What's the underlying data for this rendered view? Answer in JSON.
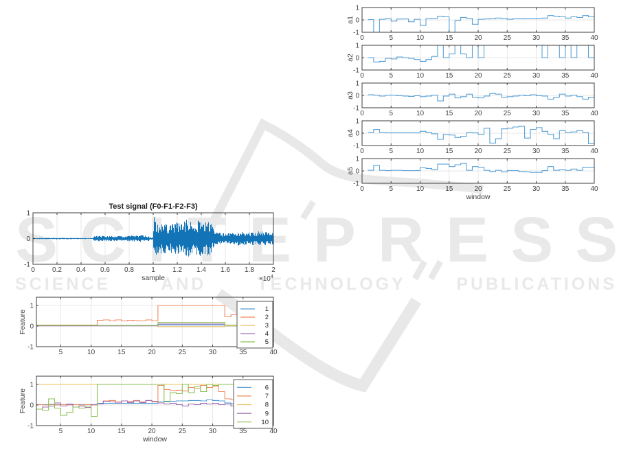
{
  "watermark": {
    "brand": "SCITEPRESS",
    "tagline": "SCIENCE AND TECHNOLOGY PUBLICATIONS",
    "color": "#e9e9e9",
    "logo_color": "#e8e8e8"
  },
  "colors": {
    "axis": "#3d3d3d",
    "tick_label": "#404040",
    "grid": "#e7e7e7",
    "stair_blue": "#58a1d8",
    "signal_blue": "#1273b7",
    "legend_border": "#555555",
    "series_palette": [
      "#4e9cd5",
      "#ef8a5e",
      "#ecc05e",
      "#a06db3",
      "#8abf55"
    ]
  },
  "chart_data": [
    {
      "id": "a1",
      "type": "stairs",
      "ylabel": "a1",
      "xlabel": "",
      "xlim": [
        0,
        40
      ],
      "ylim": [
        -1,
        1
      ],
      "xticks": [
        0,
        5,
        10,
        15,
        20,
        25,
        30,
        35,
        40
      ],
      "yticks": [
        1,
        0,
        -1
      ],
      "x_start": 1,
      "grid": true,
      "values": [
        0.02,
        -1.0,
        0.05,
        0.1,
        -0.1,
        0.07,
        0.08,
        -0.15,
        0.05,
        -0.45,
        0.1,
        0.12,
        0.3,
        0.25,
        -1.0,
        -0.05,
        0.2,
        0.12,
        -0.35,
        0.05,
        0.08,
        0.1,
        0.15,
        0.12,
        0.05,
        0.1,
        0.1,
        0.12,
        0.1,
        0.12,
        0.15,
        0.35,
        0.3,
        0.25,
        0.15,
        0.25,
        0.2,
        0.35,
        0.25,
        0.1
      ]
    },
    {
      "id": "a2",
      "type": "stairs",
      "ylabel": "a2",
      "xlabel": "",
      "xlim": [
        0,
        40
      ],
      "ylim": [
        -1,
        1
      ],
      "xticks": [
        0,
        5,
        10,
        15,
        20,
        25,
        30,
        35,
        40
      ],
      "yticks": [
        1,
        0,
        -1
      ],
      "x_start": 1,
      "grid": true,
      "values": [
        0.0,
        -0.35,
        -0.3,
        -0.05,
        -0.1,
        0.05,
        0.0,
        -0.05,
        -0.15,
        -0.3,
        -0.15,
        0.1,
        1.0,
        0.0,
        0.3,
        1.0,
        0.3,
        0.0,
        1.0,
        0.0,
        1.0,
        1.0,
        1.0,
        1.0,
        1.0,
        1.0,
        1.0,
        1.0,
        1.0,
        1.0,
        0.0,
        1.0,
        1.0,
        0.0,
        1.0,
        0.0,
        1.0,
        1.0,
        0.0,
        0.05
      ]
    },
    {
      "id": "a3",
      "type": "stairs",
      "ylabel": "a3",
      "xlabel": "",
      "xlim": [
        0,
        40
      ],
      "ylim": [
        -1,
        1
      ],
      "xticks": [
        0,
        5,
        10,
        15,
        20,
        25,
        30,
        35,
        40
      ],
      "yticks": [
        1,
        0,
        -1
      ],
      "x_start": 1,
      "grid": true,
      "values": [
        0.05,
        0.02,
        -0.05,
        0.02,
        0.02,
        -0.02,
        -0.05,
        -0.08,
        -0.02,
        -0.1,
        -0.05,
        0.02,
        -0.45,
        -0.05,
        0.1,
        -0.2,
        -0.1,
        0.1,
        -0.15,
        -0.2,
        -0.05,
        0.15,
        0.1,
        -0.15,
        -0.1,
        -0.05,
        0.02,
        -0.02,
        0.05,
        -0.02,
        -0.05,
        -0.3,
        -0.15,
        0.1,
        -0.05,
        0.02,
        -0.1,
        -0.3,
        -0.15,
        0.02
      ]
    },
    {
      "id": "a4",
      "type": "stairs",
      "ylabel": "a4",
      "xlabel": "",
      "xlim": [
        0,
        40
      ],
      "ylim": [
        -1,
        1
      ],
      "xticks": [
        0,
        5,
        10,
        15,
        20,
        25,
        30,
        35,
        40
      ],
      "yticks": [
        1,
        0,
        -1
      ],
      "x_start": 1,
      "grid": true,
      "values": [
        0.05,
        0.3,
        0.05,
        0.02,
        0.02,
        0.02,
        0.02,
        0.02,
        0.02,
        0.15,
        0.05,
        -0.05,
        -0.5,
        -0.1,
        -0.15,
        -0.35,
        -0.25,
        0.05,
        0.02,
        -0.1,
        0.4,
        -0.8,
        -0.45,
        0.35,
        0.4,
        0.5,
        0.55,
        -0.4,
        0.3,
        0.45,
        0.15,
        -0.1,
        -0.45,
        0.2,
        0.05,
        0.1,
        0.2,
        0.05,
        -0.85,
        0.05
      ]
    },
    {
      "id": "a5",
      "type": "stairs",
      "ylabel": "a5",
      "xlabel": "window",
      "xlim": [
        0,
        40
      ],
      "ylim": [
        -1,
        1
      ],
      "xticks": [
        0,
        5,
        10,
        15,
        20,
        25,
        30,
        35,
        40
      ],
      "yticks": [
        1,
        0,
        -1
      ],
      "x_start": 1,
      "grid": true,
      "values": [
        0.05,
        0.45,
        0.05,
        0.02,
        0.05,
        0.05,
        0.02,
        0.02,
        0.02,
        0.25,
        0.2,
        0.1,
        0.55,
        0.55,
        0.35,
        0.5,
        0.6,
        0.05,
        0.35,
        0.3,
        0.05,
        -0.05,
        0.05,
        -0.08,
        0.02,
        0.02,
        -0.05,
        -0.08,
        -0.12,
        -0.12,
        0.02,
        0.35,
        0.05,
        0.1,
        0.05,
        0.15,
        0.05,
        0.3,
        0.3,
        0.05
      ]
    },
    {
      "id": "test_signal",
      "type": "waveform",
      "title": "Test signal (F0-F1-F2-F3)",
      "xlabel": "sample",
      "ylabel": "",
      "x_multiplier": "×10^4",
      "xlim": [
        0,
        20000
      ],
      "ylim": [
        -1,
        1
      ],
      "xticks": [
        0,
        2000,
        4000,
        6000,
        8000,
        10000,
        12000,
        14000,
        16000,
        18000,
        20000
      ],
      "xtick_labels": [
        "0",
        "0.2",
        "0.4",
        "0.6",
        "0.8",
        "1",
        "1.2",
        "1.4",
        "1.6",
        "1.8",
        "2"
      ],
      "yticks": [
        1,
        0,
        -1
      ],
      "grid": true,
      "envelope": [
        [
          0,
          0.02
        ],
        [
          2000,
          0.03
        ],
        [
          4500,
          0.02
        ],
        [
          4950,
          0.02
        ],
        [
          5050,
          0.1
        ],
        [
          6000,
          0.12
        ],
        [
          7500,
          0.1
        ],
        [
          9000,
          0.13
        ],
        [
          9600,
          0.1
        ],
        [
          9800,
          0.04
        ],
        [
          9980,
          0.05
        ],
        [
          10020,
          0.9
        ],
        [
          10400,
          0.55
        ],
        [
          10800,
          0.65
        ],
        [
          11300,
          0.5
        ],
        [
          11800,
          0.7
        ],
        [
          12300,
          0.55
        ],
        [
          12800,
          0.75
        ],
        [
          13300,
          0.6
        ],
        [
          13800,
          0.75
        ],
        [
          14200,
          0.6
        ],
        [
          14600,
          0.75
        ],
        [
          14900,
          0.5
        ],
        [
          15100,
          0.25
        ],
        [
          16000,
          0.2
        ],
        [
          17000,
          0.28
        ],
        [
          18000,
          0.25
        ],
        [
          19000,
          0.28
        ],
        [
          20000,
          0.22
        ]
      ]
    },
    {
      "id": "features_1_5",
      "type": "stairs",
      "ylabel": "Feature",
      "xlabel": "",
      "xlim": [
        1,
        40
      ],
      "ylim": [
        -1,
        1.4
      ],
      "xticks": [
        5,
        10,
        15,
        20,
        25,
        30,
        35,
        40
      ],
      "yticks": [
        1,
        0,
        -1
      ],
      "x_start": 1,
      "grid": true,
      "legend": [
        "1",
        "2",
        "3",
        "4",
        "5"
      ],
      "series": [
        {
          "name": "1",
          "values": [
            0.04,
            0.04,
            0.04,
            0.04,
            0.04,
            0.04,
            0.04,
            0.04,
            0.04,
            0.04,
            0.03,
            0.03,
            0.03,
            0.03,
            0.03,
            0.03,
            0.03,
            0.03,
            0.03,
            0.03,
            0.06,
            0.06,
            0.06,
            0.06,
            0.06,
            0.06,
            0.06,
            0.06,
            0.06,
            0.06,
            0.06,
            0.0,
            0.0,
            0.0,
            0.0,
            0.0,
            0.0,
            0.0,
            0.0,
            0.0
          ]
        },
        {
          "name": "2",
          "values": [
            0.05,
            0.05,
            0.05,
            0.05,
            0.05,
            0.05,
            0.05,
            0.05,
            0.05,
            0.05,
            0.28,
            0.3,
            0.25,
            0.3,
            0.25,
            0.28,
            0.26,
            0.25,
            0.3,
            0.25,
            1.0,
            1.0,
            1.0,
            1.0,
            1.0,
            1.0,
            1.0,
            1.0,
            1.0,
            1.0,
            1.0,
            0.45,
            0.55,
            0.5,
            0.5,
            0.5,
            0.5,
            0.5,
            0.5,
            0.5
          ]
        },
        {
          "name": "3",
          "values": [
            0.02,
            0.02,
            0.02,
            0.02,
            0.02,
            0.02,
            0.02,
            0.02,
            0.02,
            0.02,
            0.02,
            0.02,
            0.02,
            0.02,
            0.02,
            0.02,
            0.02,
            0.02,
            0.02,
            0.02,
            -0.03,
            -0.03,
            -0.03,
            -0.03,
            -0.03,
            -0.03,
            -0.03,
            -0.03,
            -0.03,
            -0.03,
            -0.03,
            0.01,
            0.01,
            0.01,
            0.01,
            0.01,
            0.01,
            0.01,
            0.01,
            0.01
          ]
        },
        {
          "name": "4",
          "values": [
            0.01,
            0.01,
            0.01,
            0.01,
            0.01,
            0.01,
            0.01,
            0.01,
            0.01,
            0.01,
            0.01,
            0.01,
            0.01,
            0.01,
            0.01,
            0.01,
            0.01,
            0.01,
            0.01,
            0.01,
            0.1,
            0.1,
            0.1,
            0.1,
            0.1,
            0.1,
            0.1,
            0.1,
            0.1,
            0.1,
            0.1,
            0.05,
            0.05,
            0.05,
            0.05,
            0.05,
            0.05,
            0.05,
            0.05,
            0.05
          ]
        },
        {
          "name": "5",
          "values": [
            0.03,
            0.03,
            0.03,
            0.03,
            0.03,
            0.03,
            0.03,
            0.03,
            0.03,
            0.03,
            0.03,
            0.03,
            0.03,
            0.03,
            0.03,
            0.03,
            0.03,
            0.03,
            0.03,
            0.03,
            0.18,
            0.18,
            0.18,
            0.18,
            0.18,
            0.18,
            0.18,
            0.18,
            0.18,
            0.18,
            0.18,
            0.05,
            0.05,
            0.05,
            0.05,
            0.05,
            0.05,
            0.05,
            0.05,
            0.05
          ]
        }
      ]
    },
    {
      "id": "features_6_10",
      "type": "stairs",
      "ylabel": "Feature",
      "xlabel": "window",
      "xlim": [
        1,
        40
      ],
      "ylim": [
        -1,
        1.4
      ],
      "xticks": [
        5,
        10,
        15,
        20,
        25,
        30,
        35,
        40
      ],
      "yticks": [
        1,
        0,
        -1
      ],
      "x_start": 1,
      "grid": true,
      "legend": [
        "6",
        "7",
        "8",
        "9",
        "10"
      ],
      "series": [
        {
          "name": "6",
          "values": [
            0.02,
            0.02,
            0.02,
            0.02,
            0.02,
            0.02,
            0.02,
            0.02,
            0.02,
            0.02,
            0.08,
            0.08,
            0.08,
            0.08,
            0.08,
            0.08,
            0.08,
            0.08,
            0.08,
            0.08,
            0.15,
            0.18,
            0.18,
            0.2,
            0.2,
            0.22,
            0.22,
            0.2,
            0.25,
            0.22,
            0.2,
            0.1,
            0.06,
            0.05,
            0.05,
            0.04,
            0.03,
            0.02,
            -0.02,
            -0.02
          ]
        },
        {
          "name": "7",
          "values": [
            0.02,
            0.0,
            0.03,
            0.0,
            0.02,
            0.0,
            0.02,
            0.0,
            0.02,
            0.0,
            0.05,
            0.2,
            0.22,
            0.15,
            0.2,
            0.18,
            0.22,
            0.15,
            0.22,
            0.18,
            0.95,
            0.75,
            0.7,
            0.72,
            0.68,
            0.85,
            0.8,
            0.95,
            0.85,
            0.9,
            0.65,
            0.3,
            0.25,
            0.3,
            0.25,
            0.28,
            0.25,
            0.3,
            0.28,
            0.25
          ]
        },
        {
          "name": "8",
          "values": [
            1.0,
            1.0,
            1.0,
            1.0,
            1.0,
            1.0,
            1.0,
            1.0,
            1.0,
            1.0,
            1.0,
            1.0,
            1.0,
            1.0,
            1.0,
            1.0,
            1.0,
            1.0,
            1.0,
            1.0,
            1.0,
            1.0,
            1.0,
            1.0,
            1.0,
            1.0,
            1.0,
            1.0,
            1.0,
            1.0,
            1.0,
            1.0,
            1.0,
            1.0,
            1.0,
            1.0,
            1.0,
            1.0,
            1.0,
            1.0
          ]
        },
        {
          "name": "9",
          "values": [
            -0.2,
            -0.1,
            -0.05,
            0.1,
            -0.05,
            0.05,
            -0.1,
            -0.05,
            -0.12,
            0.02,
            0.05,
            0.18,
            0.15,
            0.1,
            0.2,
            0.12,
            0.2,
            0.12,
            0.22,
            0.15,
            0.1,
            0.05,
            0.08,
            0.02,
            -0.05,
            0.05,
            0.02,
            0.08,
            0.05,
            0.08,
            0.02,
            0.05,
            -0.05,
            -0.02,
            -0.05,
            -0.02,
            -0.05,
            -0.08,
            -0.05,
            -0.1
          ]
        },
        {
          "name": "10",
          "values": [
            -0.2,
            -0.25,
            0.3,
            -0.15,
            -0.5,
            -0.35,
            -0.1,
            -0.15,
            -0.05,
            -0.55,
            1.0,
            1.0,
            1.0,
            1.0,
            1.0,
            1.0,
            1.0,
            1.0,
            1.0,
            1.0,
            1.0,
            0.15,
            0.6,
            0.55,
            1.0,
            0.6,
            0.9,
            0.65,
            1.0,
            0.95,
            1.0,
            1.0,
            1.0,
            1.0,
            1.0,
            1.0,
            1.0,
            1.0,
            1.0,
            1.0
          ]
        }
      ]
    }
  ]
}
